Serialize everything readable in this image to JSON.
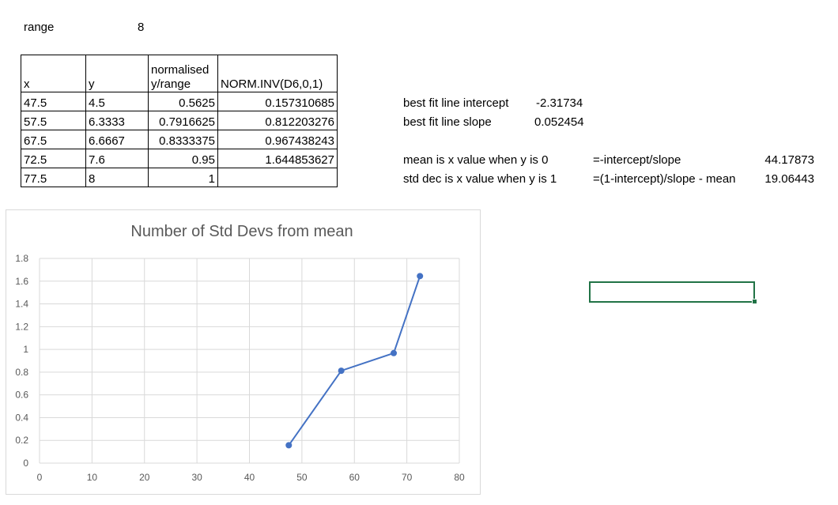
{
  "range_row": {
    "label": "range",
    "value": "8"
  },
  "table": {
    "headers": [
      "x",
      "y",
      "normalised y/range",
      "NORM.INV(D6,0,1)"
    ],
    "header_line1": "normalised",
    "header_line2": "y/range",
    "rows": [
      [
        "47.5",
        "4.5",
        "0.5625",
        "0.157310685"
      ],
      [
        "57.5",
        "6.3333",
        "0.7916625",
        "0.812203276"
      ],
      [
        "67.5",
        "6.6667",
        "0.8333375",
        "0.967438243"
      ],
      [
        "72.5",
        "7.6",
        "0.95",
        "1.644853627"
      ],
      [
        "77.5",
        "8",
        "1",
        ""
      ]
    ]
  },
  "fit": {
    "intercept_label": "best fit line intercept",
    "intercept_value": "-2.31734",
    "slope_label": "best fit line slope",
    "slope_value": "0.052454"
  },
  "derived": {
    "mean_label": "mean is x value when y is 0",
    "mean_formula": "=-intercept/slope",
    "mean_value": "44.17873",
    "std_label": "std dec is x value when y is 1",
    "std_formula": "=(1-intercept)/slope - mean",
    "std_value": "19.06443"
  },
  "chart_data": {
    "type": "scatter",
    "title": "Number of Std Devs from mean",
    "xlabel": "",
    "ylabel": "",
    "xlim": [
      0,
      80
    ],
    "ylim": [
      0,
      1.8
    ],
    "x_ticks": [
      0,
      10,
      20,
      30,
      40,
      50,
      60,
      70,
      80
    ],
    "y_ticks": [
      0,
      0.2,
      0.4,
      0.6,
      0.8,
      1,
      1.2,
      1.4,
      1.6,
      1.8
    ],
    "grid": true,
    "series": [
      {
        "x": [
          47.5,
          57.5,
          67.5,
          72.5
        ],
        "y": [
          0.157310685,
          0.812203276,
          0.967438243,
          1.644853627
        ],
        "color": "#4472c4",
        "lines": true
      }
    ]
  },
  "colors": {
    "series": "#4472c4",
    "grid": "#d9d9d9",
    "selection": "#217346"
  }
}
